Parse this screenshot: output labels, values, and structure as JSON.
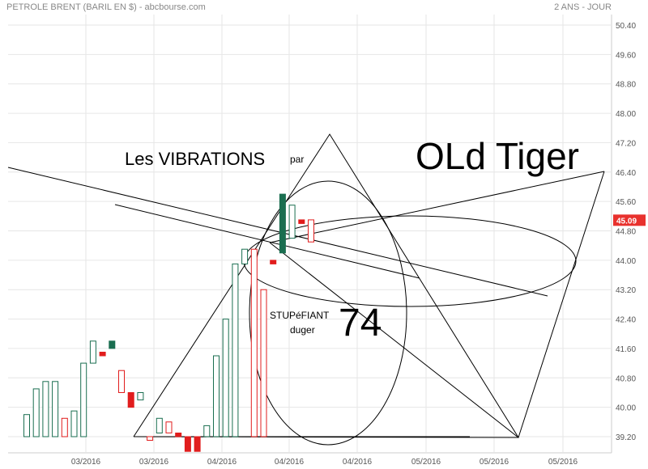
{
  "header": {
    "title": "PETROLE BRENT (BARIL EN $) - abcbourse.com",
    "period": "2 ANS - JOUR"
  },
  "colors": {
    "up": "#1a6e50",
    "down": "#e11d1d",
    "grid": "#e6e6e6",
    "price_tag": "#e8312d",
    "axis_text": "#555555"
  },
  "annotations": {
    "vibrations": "Les VIBRATIONS",
    "par": "par",
    "author": "OLd Tiger",
    "stupefiant": "STUPéFIANT",
    "duger": "duger",
    "number": "74"
  },
  "chart_data": {
    "type": "candlestick",
    "y_ticks": [
      "50.40",
      "49.60",
      "48.80",
      "48.00",
      "47.20",
      "46.40",
      "45.60",
      "44.80",
      "44.00",
      "43.20",
      "42.40",
      "41.60",
      "40.80",
      "40.00",
      "39.20"
    ],
    "ylim": [
      38.9,
      50.7
    ],
    "x_ticks": [
      "03/2016",
      "03/2016",
      "04/2016",
      "04/2016",
      "04/2016",
      "05/2016",
      "05/2016",
      "05/2016"
    ],
    "current_price": "45.09",
    "grid": true,
    "candles": [
      {
        "open": 39.2,
        "close": 39.8,
        "fill": "hollow"
      },
      {
        "open": 39.2,
        "close": 40.5,
        "fill": "hollow"
      },
      {
        "open": 39.2,
        "close": 40.7,
        "fill": "hollow"
      },
      {
        "open": 39.2,
        "close": 40.7,
        "fill": "hollow"
      },
      {
        "open": 39.7,
        "close": 39.2,
        "fill": "hollow"
      },
      {
        "open": 39.2,
        "close": 39.9,
        "fill": "hollow"
      },
      {
        "open": 39.2,
        "close": 41.2,
        "fill": "hollow"
      },
      {
        "open": 41.2,
        "close": 41.8,
        "fill": "hollow"
      },
      {
        "open": 41.5,
        "close": 41.4,
        "fill": "solid"
      },
      {
        "open": 41.6,
        "close": 41.8,
        "fill": "solid"
      },
      {
        "open": 41.0,
        "close": 40.4,
        "fill": "hollow"
      },
      {
        "open": 40.4,
        "close": 40.0,
        "fill": "solid"
      },
      {
        "open": 40.2,
        "close": 40.4,
        "fill": "hollow"
      },
      {
        "open": 39.2,
        "close": 39.1,
        "fill": "hollow"
      },
      {
        "open": 39.3,
        "close": 39.7,
        "fill": "hollow"
      },
      {
        "open": 39.6,
        "close": 39.3,
        "fill": "hollow"
      },
      {
        "open": 39.3,
        "close": 39.2,
        "fill": "solid"
      },
      {
        "open": 39.2,
        "close": 38.8,
        "fill": "solid"
      },
      {
        "open": 39.2,
        "close": 38.8,
        "fill": "solid"
      },
      {
        "open": 39.2,
        "close": 39.5,
        "fill": "hollow"
      },
      {
        "open": 39.2,
        "close": 41.4,
        "fill": "hollow"
      },
      {
        "open": 39.2,
        "close": 42.4,
        "fill": "hollow"
      },
      {
        "open": 39.2,
        "close": 43.9,
        "fill": "hollow"
      },
      {
        "open": 43.9,
        "close": 44.3,
        "fill": "hollow"
      },
      {
        "open": 44.3,
        "close": 39.2,
        "fill": "hollow"
      },
      {
        "open": 43.2,
        "close": 39.2,
        "fill": "hollow"
      },
      {
        "open": 44.0,
        "close": 43.9,
        "fill": "solid"
      },
      {
        "open": 44.2,
        "close": 45.8,
        "fill": "solid"
      },
      {
        "open": 44.6,
        "close": 45.5,
        "fill": "hollow"
      },
      {
        "open": 45.1,
        "close": 45.0,
        "fill": "solid"
      },
      {
        "open": 45.1,
        "close": 44.5,
        "fill": "hollow"
      }
    ]
  }
}
